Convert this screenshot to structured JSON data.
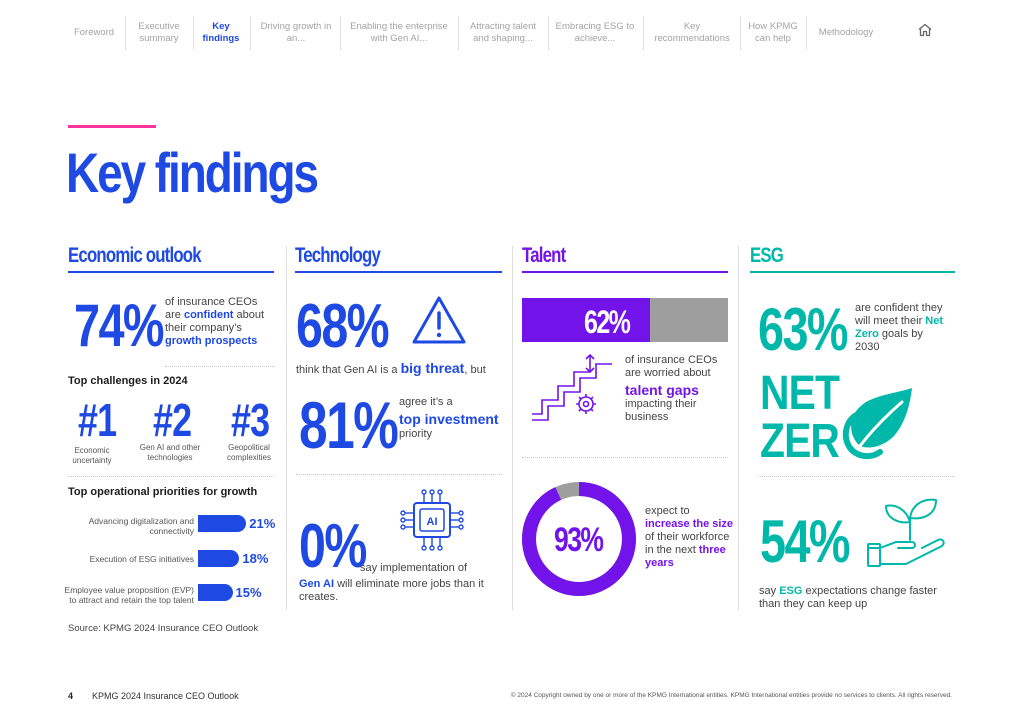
{
  "nav": {
    "items": [
      {
        "label": "Foreword"
      },
      {
        "label": "Executive summary"
      },
      {
        "label": "Key findings"
      },
      {
        "label": "Driving growth in an..."
      },
      {
        "label": "Enabling the enterprise with Gen AI..."
      },
      {
        "label": "Attracting talent and shaping..."
      },
      {
        "label": "Embracing ESG to achieve..."
      },
      {
        "label": "Key recommendations"
      },
      {
        "label": "How KPMG can help"
      },
      {
        "label": "Methodology"
      }
    ],
    "home_icon": "home-icon"
  },
  "page": {
    "title": "Key findings"
  },
  "economic": {
    "heading": "Economic outlook",
    "stat": "74%",
    "stat_text_1": "of insurance CEOs are ",
    "stat_text_bold1": "confident",
    "stat_text_2": " about their company’s ",
    "stat_text_bold2": "growth prospects",
    "challenges_title": "Top challenges in 2024",
    "challenges": [
      {
        "rank": "#1",
        "label": "Economic uncertainty"
      },
      {
        "rank": "#2",
        "label": "Gen AI and other technologies"
      },
      {
        "rank": "#3",
        "label": "Geopolitical complexities"
      }
    ],
    "priorities_title": "Top operational priorities for growth",
    "priorities": [
      {
        "label": "Advancing digitalization and connectivity",
        "value": "21%",
        "pct": 21
      },
      {
        "label": "Execution of ESG initiatives",
        "value": "18%",
        "pct": 18
      },
      {
        "label": "Employee value proposition (EVP) to attract and retain the top talent",
        "value": "15%",
        "pct": 15
      }
    ]
  },
  "technology": {
    "heading": "Technology",
    "stat1": "68%",
    "stat1_text_1": "think that Gen AI is a ",
    "stat1_text_bold": "big threat",
    "stat1_text_2": ", but",
    "stat2": "81%",
    "stat2_text_1": "agree it’s a",
    "stat2_text_bold": "top investment",
    "stat2_text_2": "priority",
    "stat3": "0%",
    "stat3_text_1": "say implementation of",
    "stat3_text_bold": "Gen AI",
    "stat3_text_2": " will eliminate more jobs than it creates.",
    "chip_label": "AI"
  },
  "talent": {
    "heading": "Talent",
    "stat1": "62%",
    "stat1_pct": 62,
    "stat1_text_1": "of insurance CEOs are worried about",
    "stat1_text_bold": "talent gaps",
    "stat1_text_2": "impacting their business",
    "stat2": "93%",
    "stat2_pct": 93,
    "stat2_text_1": "expect to ",
    "stat2_text_bold1": "increase the size",
    "stat2_text_2": " of their workforce in the next ",
    "stat2_text_bold2": "three years"
  },
  "esg": {
    "heading": "ESG",
    "stat1": "63%",
    "stat1_text_1": "are confident they will meet their ",
    "stat1_text_bold": "Net Zero",
    "stat1_text_2": " goals by 2030",
    "netzero_line1": "NET",
    "netzero_line2": "ZER",
    "stat2": "54%",
    "stat2_text_1": "say ",
    "stat2_text_bold": "ESG",
    "stat2_text_2": " expectations change faster than they can keep up"
  },
  "source": "Source: KPMG 2024 Insurance CEO Outlook",
  "footer": {
    "page_number": "4",
    "title": "KPMG 2024 Insurance CEO Outlook",
    "copyright": "© 2024 Copyright owned by one or more of the KPMG International entities. KPMG International entities provide no services to clients. All rights reserved."
  },
  "colors": {
    "kpmg_blue": "#1e49e2",
    "purple": "#7213ea",
    "green": "#00b8a9",
    "pink": "#fd349c",
    "gray": "#a3a3a3"
  }
}
